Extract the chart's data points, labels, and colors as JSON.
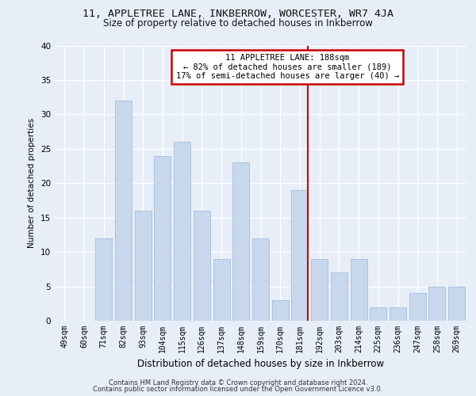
{
  "title_line1": "11, APPLETREE LANE, INKBERROW, WORCESTER, WR7 4JA",
  "title_line2": "Size of property relative to detached houses in Inkberrow",
  "xlabel": "Distribution of detached houses by size in Inkberrow",
  "ylabel": "Number of detached properties",
  "categories": [
    "49sqm",
    "60sqm",
    "71sqm",
    "82sqm",
    "93sqm",
    "104sqm",
    "115sqm",
    "126sqm",
    "137sqm",
    "148sqm",
    "159sqm",
    "170sqm",
    "181sqm",
    "192sqm",
    "203sqm",
    "214sqm",
    "225sqm",
    "236sqm",
    "247sqm",
    "258sqm",
    "269sqm"
  ],
  "values": [
    0,
    0,
    12,
    32,
    16,
    24,
    26,
    16,
    9,
    23,
    12,
    3,
    19,
    9,
    7,
    9,
    2,
    2,
    4,
    5,
    5
  ],
  "bar_color": "#c8d8ec",
  "bar_edge_color": "#a8bdd8",
  "line_color": "#cc0000",
  "line_x_index": 12,
  "annotation_text": "11 APPLETREE LANE: 188sqm\n← 82% of detached houses are smaller (189)\n17% of semi-detached houses are larger (40) →",
  "annotation_box_color": "#ffffff",
  "annotation_box_edge_color": "#cc0000",
  "ylim": [
    0,
    40
  ],
  "yticks": [
    0,
    5,
    10,
    15,
    20,
    25,
    30,
    35,
    40
  ],
  "footer_line1": "Contains HM Land Registry data © Crown copyright and database right 2024.",
  "footer_line2": "Contains public sector information licensed under the Open Government Licence v3.0.",
  "bg_color": "#e8eef8",
  "plot_bg_color": "#e8eef8"
}
